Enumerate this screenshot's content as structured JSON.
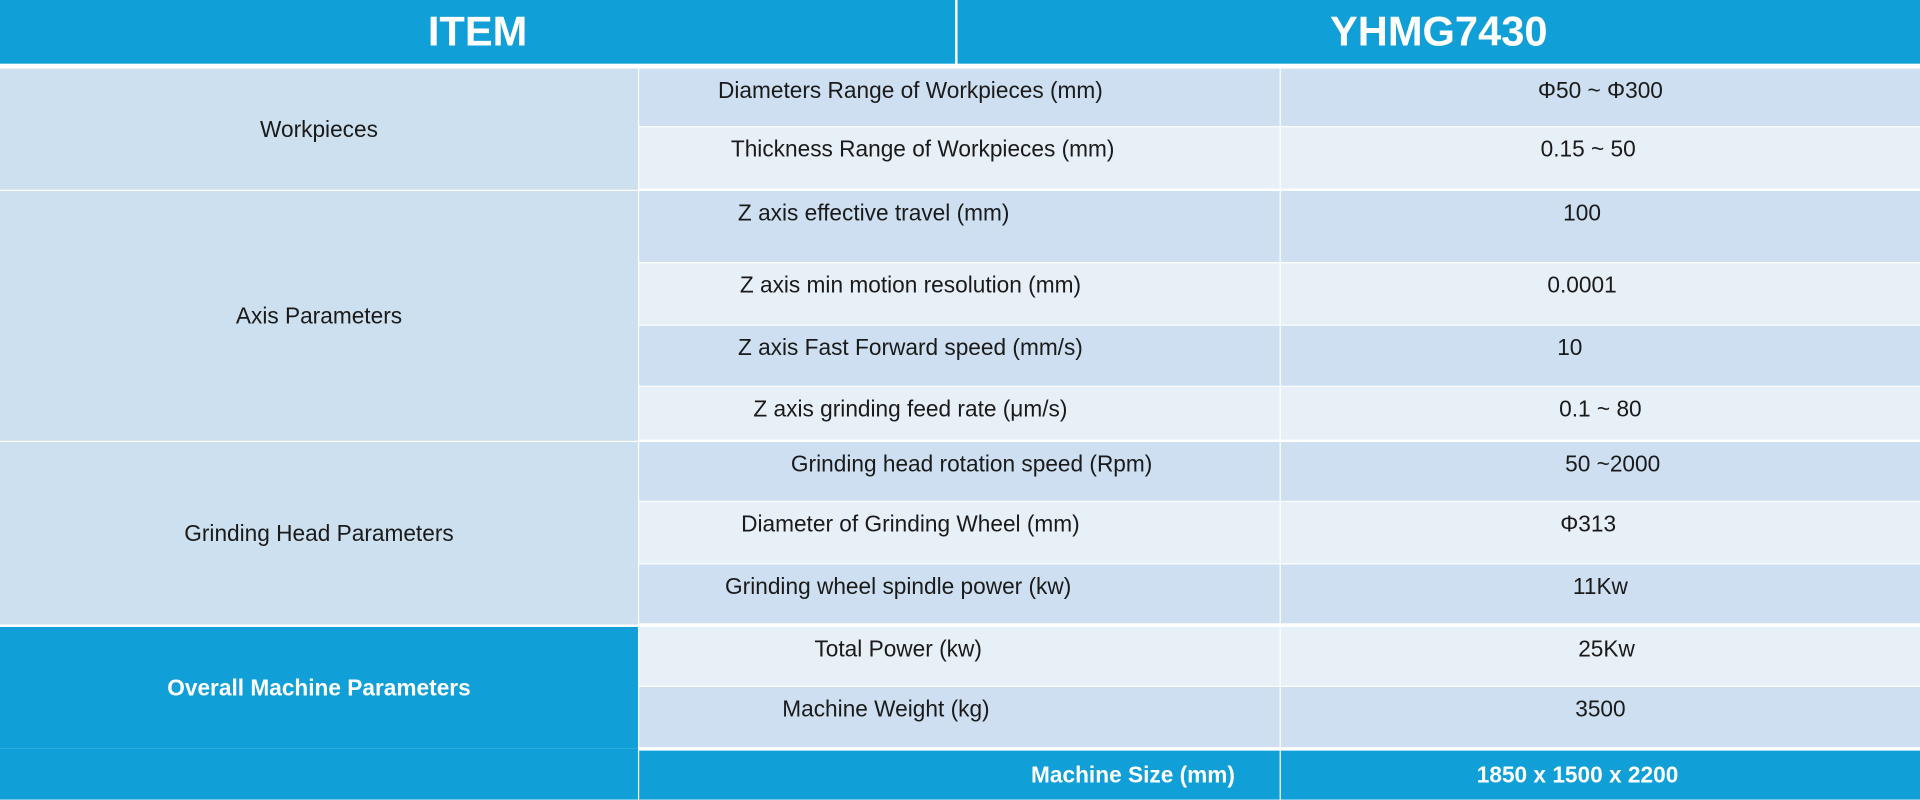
{
  "header": {
    "item": "ITEM",
    "model": "YHMG7430"
  },
  "groups": [
    {
      "label": "Workpieces",
      "rows": [
        {
          "param": "Diameters  Range of Workpieces (mm)",
          "value": "Φ50 ~ Φ300"
        },
        {
          "param": "Thickness Range of Workpieces  (mm)",
          "value": "0.15 ~ 50"
        }
      ]
    },
    {
      "label": "Axis Parameters",
      "rows": [
        {
          "param": "Z axis effective travel (mm)",
          "value": "100"
        },
        {
          "param": "Z axis min motion resolution (mm)",
          "value": "0.0001"
        },
        {
          "param": "Z axis Fast  Forward speed (mm/s)",
          "value": "10"
        },
        {
          "param": "Z axis grinding feed rate  (μm/s)",
          "value": "0.1 ~ 80"
        }
      ]
    },
    {
      "label": "Grinding Head Parameters",
      "rows": [
        {
          "param": "Grinding head rotation speed (Rpm)",
          "value": "50 ~2000"
        },
        {
          "param": "Diameter of Grinding Wheel (mm)",
          "value": "Φ313"
        },
        {
          "param": "Grinding wheel spindle power (kw)",
          "value": "11Kw"
        }
      ]
    },
    {
      "label": "Overall Machine Parameters",
      "rows": [
        {
          "param": "Total Power (kw)",
          "value": "25Kw"
        },
        {
          "param": "Machine Weight (kg)",
          "value": "3500"
        }
      ]
    }
  ],
  "footer": {
    "param": "Machine  Size (mm)",
    "value": "1850 x 1500 x 2200"
  },
  "colors": {
    "accent": "#109fd7",
    "row_dark": "#cddff0",
    "row_light": "#e7eff7"
  }
}
